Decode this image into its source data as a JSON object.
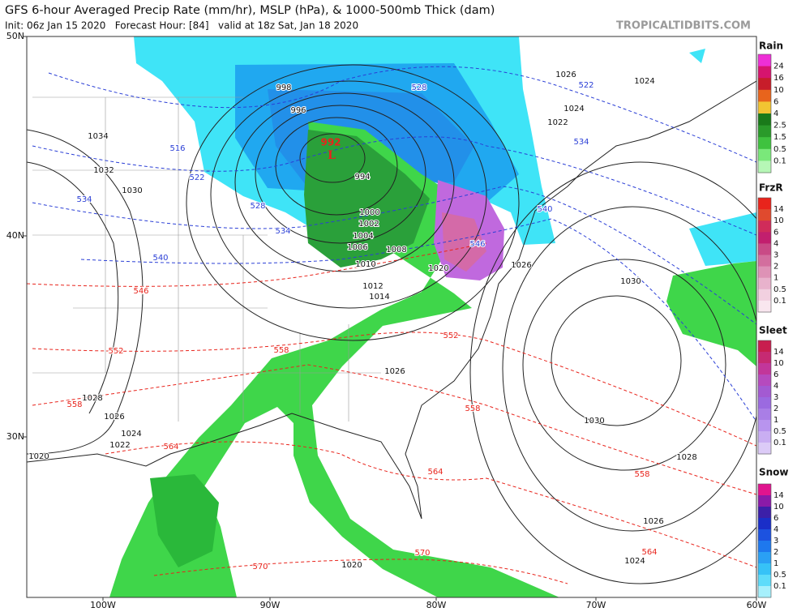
{
  "header": {
    "title": "GFS 6-hour Averaged Precip Rate (mm/hr), MSLP (hPa), & 1000-500mb Thick (dam)",
    "subtitle": "Init: 06z Jan 15 2020   Forecast Hour: [84]   valid at 18z Sat, Jan 18 2020",
    "watermark": "TROPICALTIDBITS.COM"
  },
  "axes": {
    "latitude": [
      "50N",
      "40N",
      "30N"
    ],
    "longitude": [
      "100W",
      "90W",
      "80W",
      "70W",
      "60W"
    ]
  },
  "low_center": {
    "symbol": "L",
    "pressure": "992",
    "color": "#e8241c"
  },
  "isobar_labels": {
    "color": "#111111",
    "labels": [
      "998",
      "996",
      "994",
      "1000",
      "1002",
      "1004",
      "1006",
      "1008",
      "1010",
      "1012",
      "1014",
      "1020",
      "1022",
      "1024",
      "1024",
      "1026",
      "1026",
      "1026",
      "1030",
      "1030",
      "1028",
      "1026",
      "1024",
      "1020",
      "1034",
      "1032",
      "1030",
      "1028",
      "1026",
      "1024",
      "1022",
      "1020"
    ]
  },
  "thickness_cold_labels": {
    "color": "#2b3fd6",
    "labels": [
      "528",
      "522",
      "516",
      "522",
      "534",
      "528",
      "534",
      "540",
      "534",
      "540",
      "546"
    ]
  },
  "thickness_warm_labels": {
    "color": "#e8241c",
    "labels": [
      "546",
      "552",
      "558",
      "564",
      "558",
      "552",
      "558",
      "564",
      "558",
      "564",
      "570",
      "570"
    ]
  },
  "legends": [
    {
      "title": "Rain",
      "levels": [
        "24",
        "16",
        "10",
        "6",
        "4",
        "2.5",
        "1.5",
        "0.5",
        "0.1"
      ],
      "colors": [
        "#ee2fd6",
        "#d6146e",
        "#c71d2a",
        "#e8641c",
        "#f2c432",
        "#1a7a1a",
        "#2a9a2a",
        "#3fc23f",
        "#7ae87a",
        "#b6f7b6"
      ]
    },
    {
      "title": "FrzR",
      "levels": [
        "14",
        "10",
        "6",
        "4",
        "3",
        "2",
        "1",
        "0.5",
        "0.1"
      ],
      "colors": [
        "#e8241c",
        "#e04a2e",
        "#d02c5a",
        "#c21f6e",
        "#c94a86",
        "#d36e9e",
        "#de92b6",
        "#e8b2cc",
        "#f2d0e0",
        "#f9e6ef"
      ]
    },
    {
      "title": "Sleet",
      "levels": [
        "14",
        "10",
        "6",
        "4",
        "3",
        "2",
        "1",
        "0.5",
        "0.1"
      ],
      "colors": [
        "#c81e4e",
        "#c62a72",
        "#c2369a",
        "#b64abe",
        "#a35ad2",
        "#9b6ae0",
        "#a97ee6",
        "#b894ee",
        "#c9aef2",
        "#dccbf7"
      ]
    },
    {
      "title": "Snow",
      "levels": [
        "14",
        "10",
        "6",
        "4",
        "3",
        "2",
        "1",
        "0.5",
        "0.1"
      ],
      "colors": [
        "#e0148e",
        "#8a1aa8",
        "#3c1fa8",
        "#1a2ec8",
        "#1c52e0",
        "#1e78ee",
        "#2aa0f4",
        "#36c2f7",
        "#5edcfa",
        "#a6f0fc"
      ]
    }
  ]
}
